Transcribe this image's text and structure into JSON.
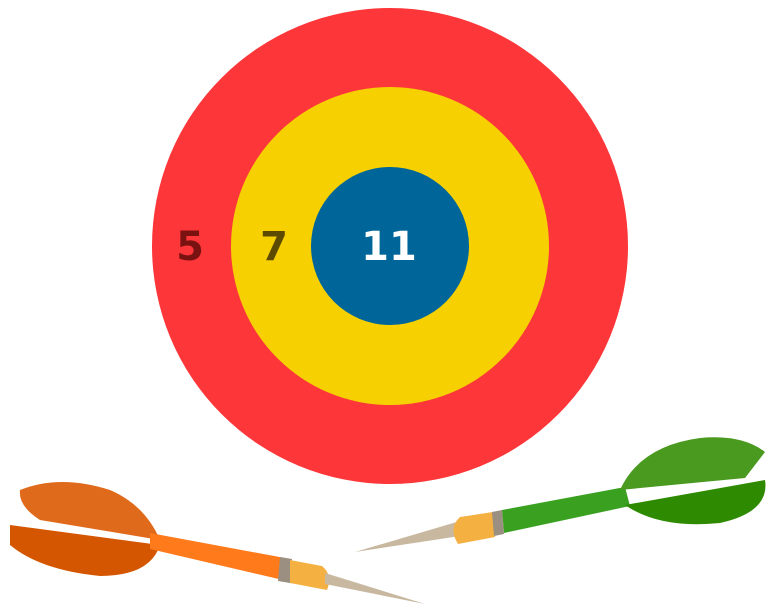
{
  "rings": [
    {
      "label": "5"
    },
    {
      "label": "7"
    },
    {
      "label": "11"
    }
  ]
}
